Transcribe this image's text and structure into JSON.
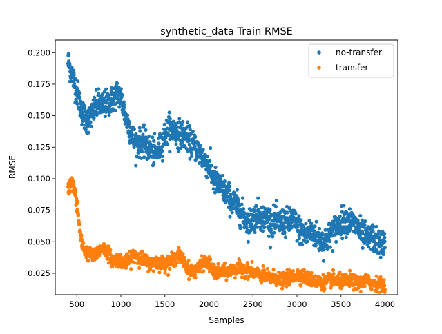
{
  "chart_data": {
    "type": "scatter",
    "title": "synthetic_data Train RMSE",
    "xlabel": "Samples",
    "ylabel": "RMSE",
    "xlim": [
      255,
      4145
    ],
    "ylim": [
      0.008,
      0.21
    ],
    "xticks": [
      500,
      1000,
      1500,
      2000,
      2500,
      3000,
      3500,
      4000
    ],
    "xtick_labels": [
      "500",
      "1000",
      "1500",
      "2000",
      "2500",
      "3000",
      "3500",
      "4000"
    ],
    "yticks": [
      0.025,
      0.05,
      0.075,
      0.1,
      0.125,
      0.15,
      0.175,
      0.2
    ],
    "ytick_labels": [
      "0.025",
      "0.050",
      "0.075",
      "0.100",
      "0.125",
      "0.150",
      "0.175",
      "0.200"
    ],
    "grid": false,
    "legend_position": "top-right",
    "series": [
      {
        "name": "no-transfer",
        "color": "#1f77b4",
        "trend": [
          [
            400,
            0.193
          ],
          [
            450,
            0.182
          ],
          [
            500,
            0.17
          ],
          [
            550,
            0.155
          ],
          [
            600,
            0.147
          ],
          [
            650,
            0.148
          ],
          [
            700,
            0.155
          ],
          [
            750,
            0.16
          ],
          [
            800,
            0.158
          ],
          [
            850,
            0.16
          ],
          [
            900,
            0.162
          ],
          [
            950,
            0.168
          ],
          [
            1000,
            0.165
          ],
          [
            1050,
            0.15
          ],
          [
            1100,
            0.14
          ],
          [
            1150,
            0.13
          ],
          [
            1200,
            0.128
          ],
          [
            1250,
            0.129
          ],
          [
            1300,
            0.125
          ],
          [
            1350,
            0.122
          ],
          [
            1400,
            0.12
          ],
          [
            1450,
            0.125
          ],
          [
            1500,
            0.135
          ],
          [
            1550,
            0.14
          ],
          [
            1600,
            0.138
          ],
          [
            1650,
            0.136
          ],
          [
            1700,
            0.135
          ],
          [
            1750,
            0.133
          ],
          [
            1800,
            0.128
          ],
          [
            1850,
            0.125
          ],
          [
            1900,
            0.12
          ],
          [
            1950,
            0.115
          ],
          [
            2000,
            0.11
          ],
          [
            2050,
            0.1
          ],
          [
            2100,
            0.095
          ],
          [
            2150,
            0.093
          ],
          [
            2200,
            0.088
          ],
          [
            2250,
            0.083
          ],
          [
            2300,
            0.08
          ],
          [
            2350,
            0.075
          ],
          [
            2400,
            0.07
          ],
          [
            2450,
            0.065
          ],
          [
            2500,
            0.068
          ],
          [
            2550,
            0.072
          ],
          [
            2600,
            0.07
          ],
          [
            2650,
            0.068
          ],
          [
            2700,
            0.067
          ],
          [
            2750,
            0.066
          ],
          [
            2800,
            0.065
          ],
          [
            2850,
            0.066
          ],
          [
            2900,
            0.065
          ],
          [
            2950,
            0.068
          ],
          [
            3000,
            0.062
          ],
          [
            3050,
            0.058
          ],
          [
            3100,
            0.055
          ],
          [
            3150,
            0.058
          ],
          [
            3200,
            0.056
          ],
          [
            3250,
            0.052
          ],
          [
            3300,
            0.05
          ],
          [
            3350,
            0.053
          ],
          [
            3400,
            0.058
          ],
          [
            3450,
            0.062
          ],
          [
            3500,
            0.065
          ],
          [
            3550,
            0.068
          ],
          [
            3600,
            0.066
          ],
          [
            3650,
            0.064
          ],
          [
            3700,
            0.06
          ],
          [
            3750,
            0.055
          ],
          [
            3800,
            0.052
          ],
          [
            3850,
            0.054
          ],
          [
            3900,
            0.05
          ],
          [
            3950,
            0.048
          ],
          [
            4000,
            0.049
          ]
        ],
        "spread": 0.012
      },
      {
        "name": "transfer",
        "color": "#ff7f0e",
        "trend": [
          [
            400,
            0.09
          ],
          [
            430,
            0.098
          ],
          [
            460,
            0.095
          ],
          [
            490,
            0.085
          ],
          [
            520,
            0.068
          ],
          [
            550,
            0.05
          ],
          [
            600,
            0.042
          ],
          [
            650,
            0.04
          ],
          [
            700,
            0.038
          ],
          [
            750,
            0.043
          ],
          [
            800,
            0.045
          ],
          [
            850,
            0.042
          ],
          [
            900,
            0.035
          ],
          [
            950,
            0.036
          ],
          [
            1000,
            0.035
          ],
          [
            1050,
            0.034
          ],
          [
            1100,
            0.035
          ],
          [
            1150,
            0.04
          ],
          [
            1200,
            0.038
          ],
          [
            1250,
            0.036
          ],
          [
            1300,
            0.034
          ],
          [
            1350,
            0.032
          ],
          [
            1400,
            0.034
          ],
          [
            1450,
            0.033
          ],
          [
            1500,
            0.033
          ],
          [
            1550,
            0.034
          ],
          [
            1600,
            0.035
          ],
          [
            1650,
            0.04
          ],
          [
            1700,
            0.036
          ],
          [
            1750,
            0.03
          ],
          [
            1800,
            0.026
          ],
          [
            1850,
            0.028
          ],
          [
            1900,
            0.03
          ],
          [
            1950,
            0.034
          ],
          [
            2000,
            0.033
          ],
          [
            2050,
            0.026
          ],
          [
            2100,
            0.025
          ],
          [
            2150,
            0.026
          ],
          [
            2200,
            0.026
          ],
          [
            2250,
            0.027
          ],
          [
            2300,
            0.028
          ],
          [
            2350,
            0.029
          ],
          [
            2400,
            0.028
          ],
          [
            2450,
            0.027
          ],
          [
            2500,
            0.026
          ],
          [
            2550,
            0.024
          ],
          [
            2600,
            0.023
          ],
          [
            2650,
            0.022
          ],
          [
            2700,
            0.021
          ],
          [
            2750,
            0.022
          ],
          [
            2800,
            0.02
          ],
          [
            2850,
            0.019
          ],
          [
            2900,
            0.021
          ],
          [
            2950,
            0.022
          ],
          [
            3000,
            0.024
          ],
          [
            3050,
            0.023
          ],
          [
            3100,
            0.022
          ],
          [
            3150,
            0.02
          ],
          [
            3200,
            0.019
          ],
          [
            3250,
            0.018
          ],
          [
            3300,
            0.018
          ],
          [
            3350,
            0.019
          ],
          [
            3400,
            0.02
          ],
          [
            3450,
            0.019
          ],
          [
            3500,
            0.018
          ],
          [
            3550,
            0.019
          ],
          [
            3600,
            0.02
          ],
          [
            3650,
            0.018
          ],
          [
            3700,
            0.017
          ],
          [
            3750,
            0.018
          ],
          [
            3800,
            0.019
          ],
          [
            3850,
            0.017
          ],
          [
            3900,
            0.017
          ],
          [
            3950,
            0.016
          ],
          [
            4000,
            0.016
          ]
        ],
        "spread": 0.006
      }
    ]
  }
}
